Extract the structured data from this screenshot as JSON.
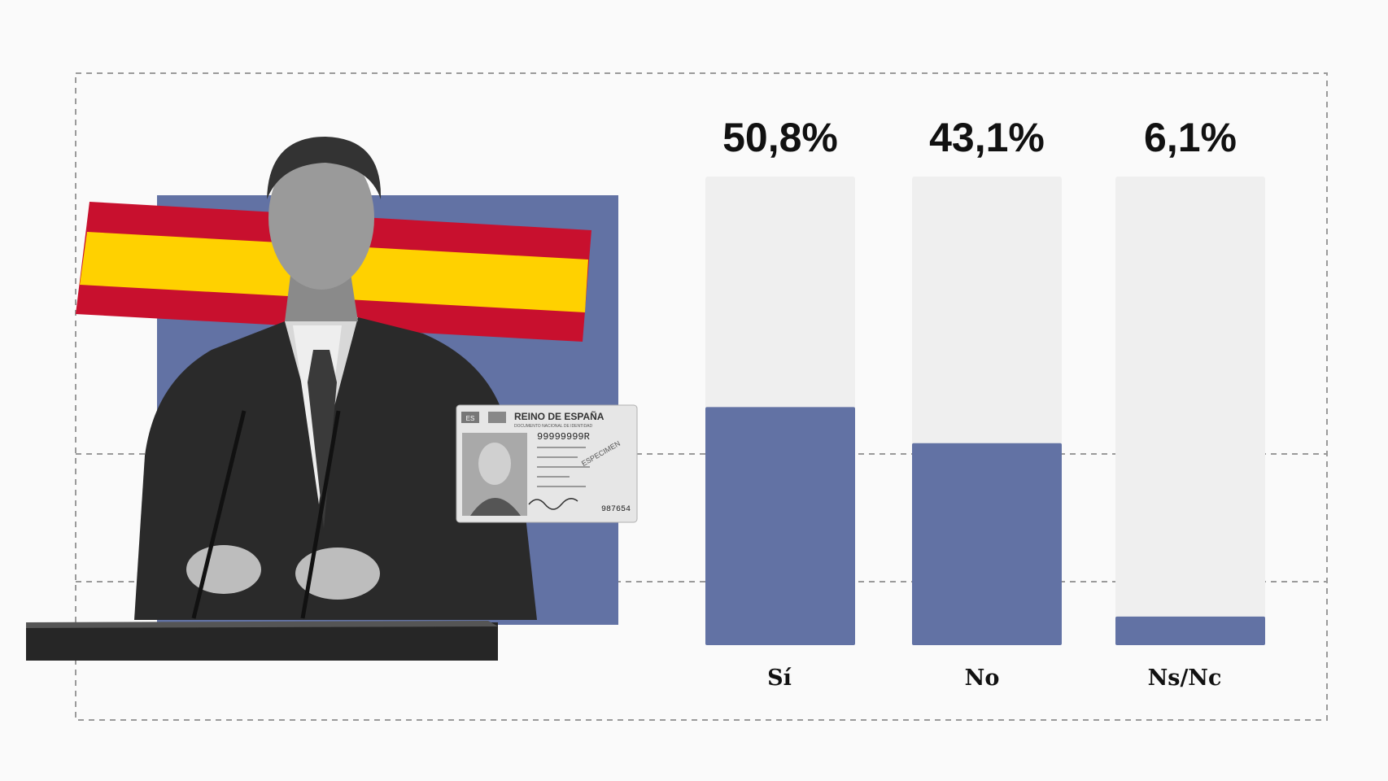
{
  "chart_data": {
    "type": "bar",
    "categories": [
      "Sí",
      "No",
      "Ns/Nc"
    ],
    "values": [
      50.8,
      43.1,
      6.1
    ],
    "value_labels": [
      "50,8%",
      "43,1%",
      "6,1%"
    ],
    "ylim": [
      0,
      100
    ],
    "title": "",
    "xlabel": "",
    "ylabel": ""
  },
  "id_card": {
    "header": "REINO DE ESPAÑA",
    "subheader": "DOCUMENTO NACIONAL DE IDENTIDAD",
    "country_code": "ES",
    "number": "99999999R",
    "specimen": "ESPECIMEN",
    "card_no": "987654"
  },
  "colors": {
    "bar_fill": "#6272a4",
    "bar_track": "#efefef",
    "background": "#fafafa",
    "flag_red": "#c8102e",
    "flag_yellow": "#ffd100",
    "backdrop_blue": "#6272a4"
  }
}
